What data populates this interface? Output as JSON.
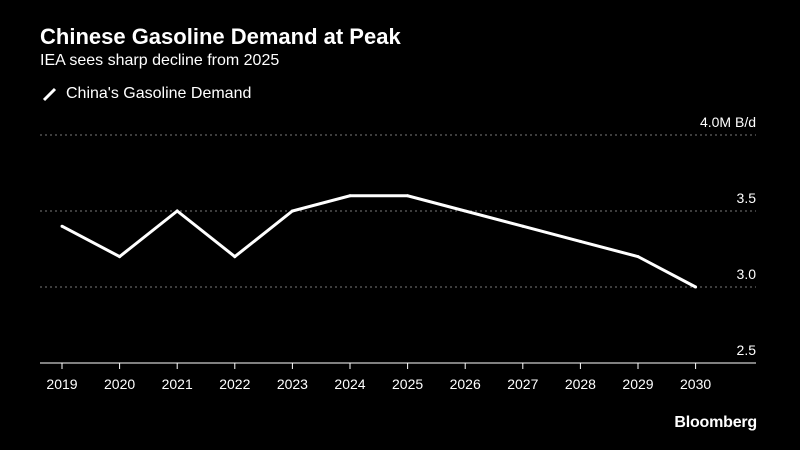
{
  "header": {
    "title": "Chinese Gasoline Demand at Peak",
    "subtitle": "IEA sees sharp decline from 2025"
  },
  "source": "Bloomberg",
  "colors": {
    "background": "#000000",
    "line": "#ffffff",
    "grid": "#7a7a7a",
    "text": "#ffffff"
  },
  "chart_data": {
    "type": "line",
    "title": "Chinese Gasoline Demand at Peak",
    "subtitle": "IEA sees sharp decline from 2025",
    "x": [
      "2019",
      "2020",
      "2021",
      "2022",
      "2023",
      "2024",
      "2025",
      "2026",
      "2027",
      "2028",
      "2029",
      "2030"
    ],
    "series": [
      {
        "name": "China's Gasoline Demand",
        "values": [
          3.4,
          3.2,
          3.5,
          3.2,
          3.5,
          3.6,
          3.6,
          3.5,
          3.4,
          3.3,
          3.2,
          3.0
        ]
      }
    ],
    "ylim": [
      2.5,
      4.0
    ],
    "y_ticks": [
      {
        "value": 4.0,
        "label": "4.0M B/d"
      },
      {
        "value": 3.5,
        "label": "3.5"
      },
      {
        "value": 3.0,
        "label": "3.0"
      },
      {
        "value": 2.5,
        "label": "2.5"
      }
    ],
    "y_axis_side": "right",
    "grid": "dotted horizontal",
    "legend_position": "top-left"
  }
}
